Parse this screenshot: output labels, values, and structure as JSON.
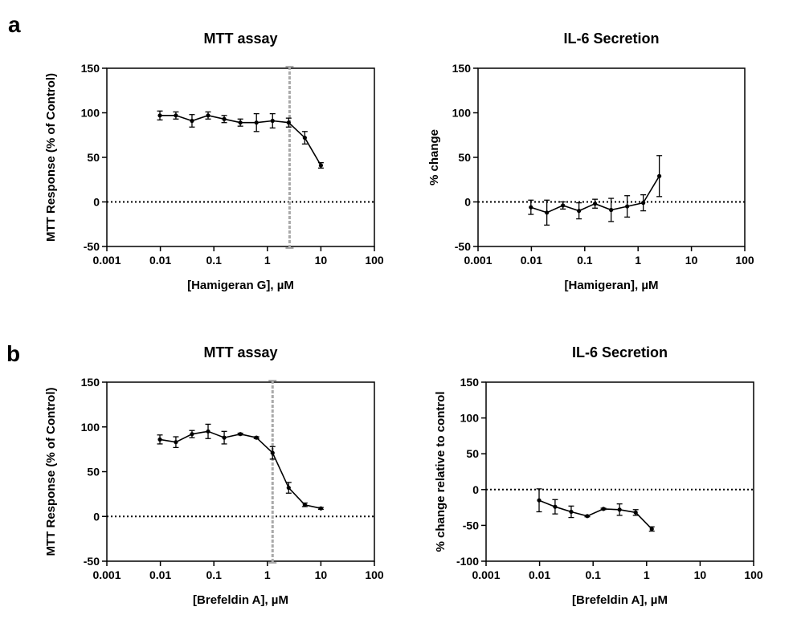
{
  "panel_labels": [
    "a",
    "b"
  ],
  "chart_data": [
    {
      "type": "line",
      "title": "MTT assay",
      "xlabel": "[Hamigeran G], µM",
      "ylabel": "MTT Response (% of Control)",
      "xscale": "log",
      "xlim": [
        0.001,
        100
      ],
      "ylim": [
        -50,
        150
      ],
      "x_ticks": [
        "0.001",
        "0.01",
        "0.1",
        "1",
        "10",
        "100"
      ],
      "y_ticks": [
        "-50",
        "0",
        "50",
        "100",
        "150"
      ],
      "series": [
        {
          "name": "MTT",
          "x": [
            0.0098,
            0.0195,
            0.039,
            0.078,
            0.156,
            0.3125,
            0.625,
            1.25,
            2.5,
            5,
            10
          ],
          "y": [
            97,
            97,
            91,
            97,
            93,
            89,
            89,
            91,
            89,
            72,
            41
          ],
          "err": [
            5,
            4,
            7,
            4,
            4,
            4,
            10,
            8,
            5,
            7,
            3
          ]
        }
      ],
      "reference_y": 0,
      "vline_x": 2.6
    },
    {
      "type": "line",
      "title": "IL-6 Secretion",
      "xlabel": "[Hamigeran], µM",
      "ylabel": "% change",
      "xscale": "log",
      "xlim": [
        0.001,
        100
      ],
      "ylim": [
        -50,
        150
      ],
      "x_ticks": [
        "0.001",
        "0.01",
        "0.1",
        "1",
        "10",
        "100"
      ],
      "y_ticks": [
        "-50",
        "0",
        "50",
        "100",
        "150"
      ],
      "series": [
        {
          "name": "IL-6",
          "x": [
            0.0098,
            0.0195,
            0.039,
            0.078,
            0.156,
            0.3125,
            0.625,
            1.25,
            2.5
          ],
          "y": [
            -6,
            -12,
            -4,
            -10,
            -2,
            -9,
            -5,
            -1,
            29
          ],
          "err": [
            8,
            14,
            4,
            9,
            5,
            13,
            12,
            9,
            23
          ]
        }
      ],
      "reference_y": 0
    },
    {
      "type": "line",
      "title": "MTT assay",
      "xlabel": "[Brefeldin A], µM",
      "ylabel": "MTT Response (% of Control)",
      "xscale": "log",
      "xlim": [
        0.001,
        100
      ],
      "ylim": [
        -50,
        150
      ],
      "x_ticks": [
        "0.001",
        "0.01",
        "0.1",
        "1",
        "10",
        "100"
      ],
      "y_ticks": [
        "-50",
        "0",
        "50",
        "100",
        "150"
      ],
      "series": [
        {
          "name": "MTT",
          "x": [
            0.0098,
            0.0195,
            0.039,
            0.078,
            0.156,
            0.3125,
            0.625,
            1.25,
            2.5,
            5,
            10
          ],
          "y": [
            86,
            83,
            92,
            95,
            88,
            92,
            88,
            71,
            32,
            13,
            9
          ],
          "err": [
            5,
            6,
            4,
            8,
            7,
            1,
            1,
            7,
            6,
            2,
            1
          ]
        }
      ],
      "reference_y": 0,
      "vline_x": 1.25
    },
    {
      "type": "line",
      "title": "IL-6 Secretion",
      "xlabel": "[Brefeldin A], µM",
      "ylabel": "% change relative to control",
      "xscale": "log",
      "xlim": [
        0.001,
        100
      ],
      "ylim": [
        -100,
        150
      ],
      "x_ticks": [
        "0.001",
        "0.01",
        "0.1",
        "1",
        "10",
        "100"
      ],
      "y_ticks": [
        "-100",
        "-50",
        "0",
        "50",
        "100",
        "150"
      ],
      "series": [
        {
          "name": "IL-6",
          "x": [
            0.0098,
            0.0195,
            0.039,
            0.078,
            0.156,
            0.3125,
            0.625,
            1.25
          ],
          "y": [
            -15,
            -24,
            -31,
            -37,
            -27,
            -28,
            -32,
            -55
          ],
          "err": [
            16,
            10,
            8,
            1,
            1,
            8,
            4,
            3
          ]
        }
      ],
      "reference_y": 0
    }
  ]
}
